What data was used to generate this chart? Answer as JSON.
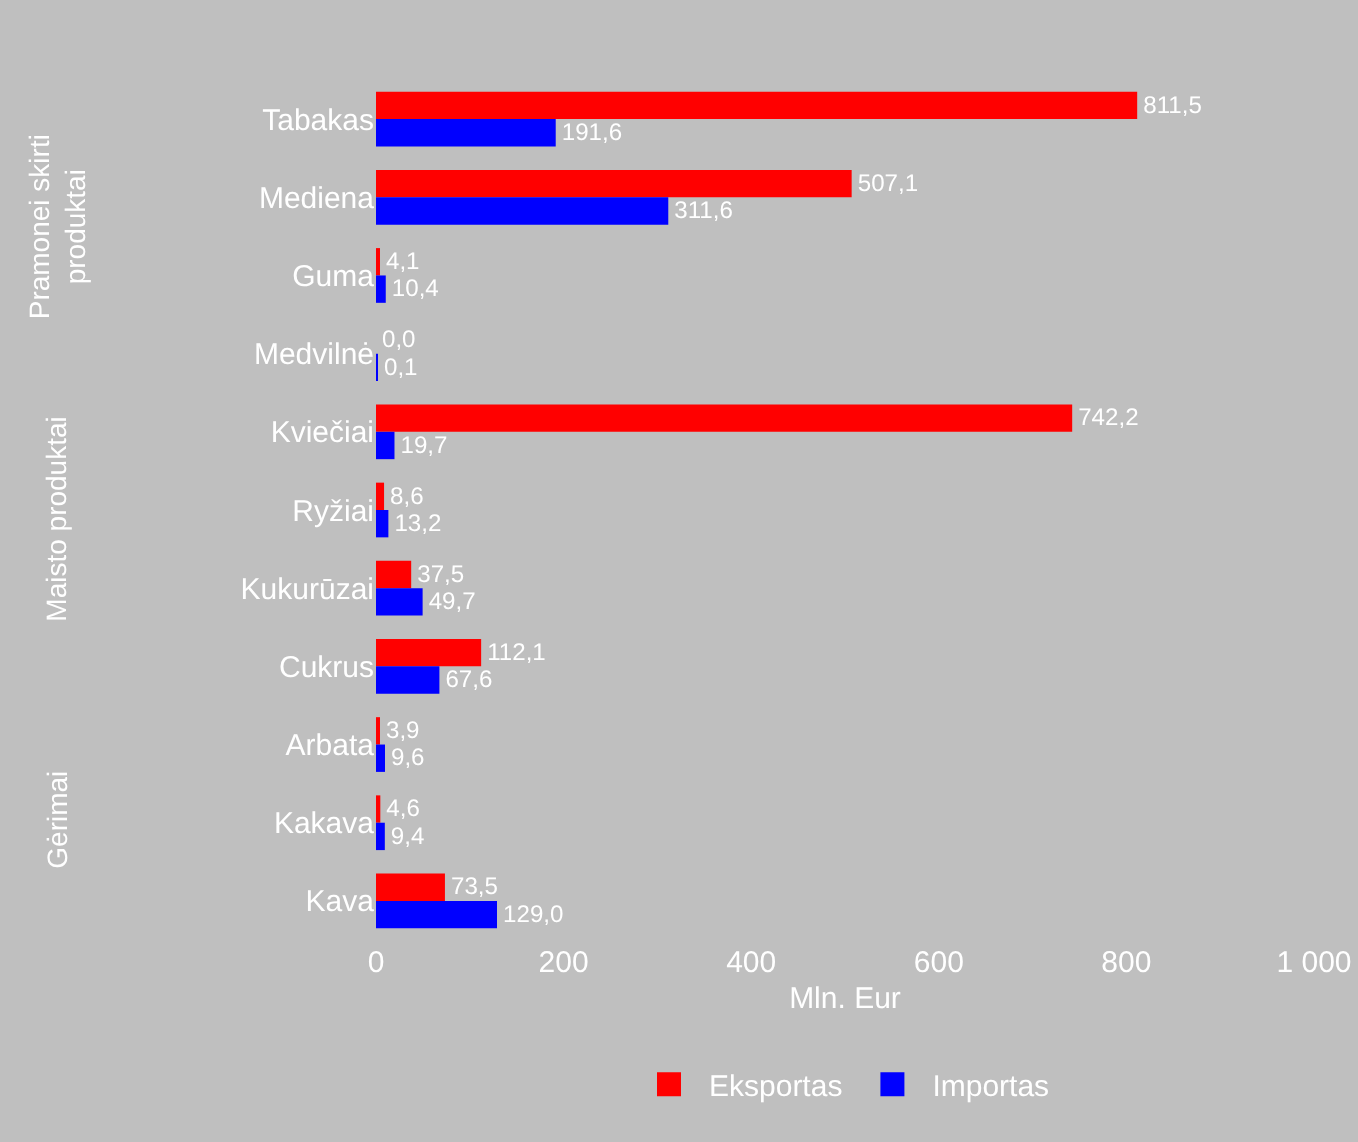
{
  "chart_data": {
    "type": "bar",
    "orientation": "horizontal",
    "xlabel": "Mln. Eur",
    "categories": [
      "Tabakas",
      "Mediena",
      "Guma",
      "Medvilnė",
      "Kviečiai",
      "Ryžiai",
      "Kukurūzai",
      "Cukrus",
      "Arbata",
      "Kakava",
      "Kava"
    ],
    "series": [
      {
        "name": "Eksportas",
        "color": "#ff0000",
        "values": [
          811.5,
          507.1,
          4.1,
          0.0,
          742.2,
          8.6,
          37.5,
          112.1,
          3.9,
          4.6,
          73.5
        ],
        "value_labels": [
          "811,5",
          "507,1",
          "4,1",
          "0,0",
          "742,2",
          "8,6",
          "37,5",
          "112,1",
          "3,9",
          "4,6",
          "73,5"
        ]
      },
      {
        "name": "Importas",
        "color": "#0000ff",
        "values": [
          191.6,
          311.6,
          10.4,
          0.1,
          19.7,
          13.2,
          49.7,
          67.6,
          9.6,
          9.4,
          129.0
        ],
        "value_labels": [
          "191,6",
          "311,6",
          "10,4",
          "0,1",
          "19,7",
          "13,2",
          "49,7",
          "67,6",
          "9,6",
          "9,4",
          "129,0"
        ]
      }
    ],
    "xlim": [
      0,
      1000
    ],
    "xticks": [
      0,
      200,
      400,
      600,
      800,
      {
        "value": 1000,
        "label": "1 000"
      }
    ],
    "grid": false,
    "legend": "bottom",
    "annotations": [
      "Pramonei skirti produktai",
      "Maisto produktai",
      "Gėrimai"
    ]
  }
}
